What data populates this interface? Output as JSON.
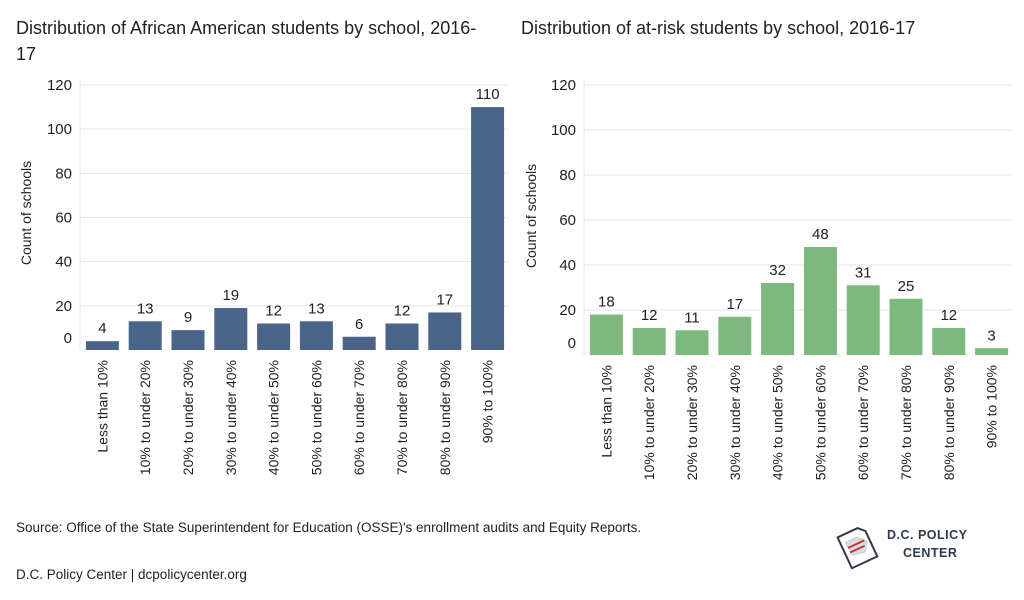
{
  "colors": {
    "left_bar": "#4a6487",
    "right_bar": "#7db87f",
    "grid": "#e6e6e6",
    "text": "#222222"
  },
  "chart_data": [
    {
      "type": "bar",
      "title": "Distribution of African American students by school, 2016-17",
      "ylabel": "Count of schools",
      "xlabel": "",
      "ylim": [
        0,
        120
      ],
      "yticks": [
        0,
        20,
        40,
        60,
        80,
        100,
        120
      ],
      "grid": true,
      "categories": [
        "Less than 10%",
        "10% to under 20%",
        "20% to under 30%",
        "30% to under 40%",
        "40% to under 50%",
        "50% to under 60%",
        "60% to under 70%",
        "70% to under 80%",
        "80% to under 90%",
        "90% to 100%"
      ],
      "values": [
        4,
        13,
        9,
        19,
        12,
        13,
        6,
        12,
        17,
        110
      ]
    },
    {
      "type": "bar",
      "title": "Distribution of at-risk students by school, 2016-17",
      "ylabel": "Count of schools",
      "xlabel": "",
      "ylim": [
        0,
        120
      ],
      "yticks": [
        0,
        20,
        40,
        60,
        80,
        100,
        120
      ],
      "grid": true,
      "categories": [
        "Less than 10%",
        "10% to under 20%",
        "20% to under 30%",
        "30% to under 40%",
        "40% to under 50%",
        "50% to under 60%",
        "60% to under 70%",
        "70% to under 80%",
        "80% to under 90%",
        "90% to 100%"
      ],
      "values": [
        18,
        12,
        11,
        17,
        32,
        48,
        31,
        25,
        12,
        3
      ]
    }
  ],
  "footer": {
    "source": "Source: Office of the State Superintendent for Education (OSSE)'s enrollment audits and Equity Reports.",
    "credit": "D.C. Policy Center | dcpolicycenter.org"
  },
  "logo": {
    "line1": "D.C. POLICY",
    "line2": "CENTER"
  }
}
